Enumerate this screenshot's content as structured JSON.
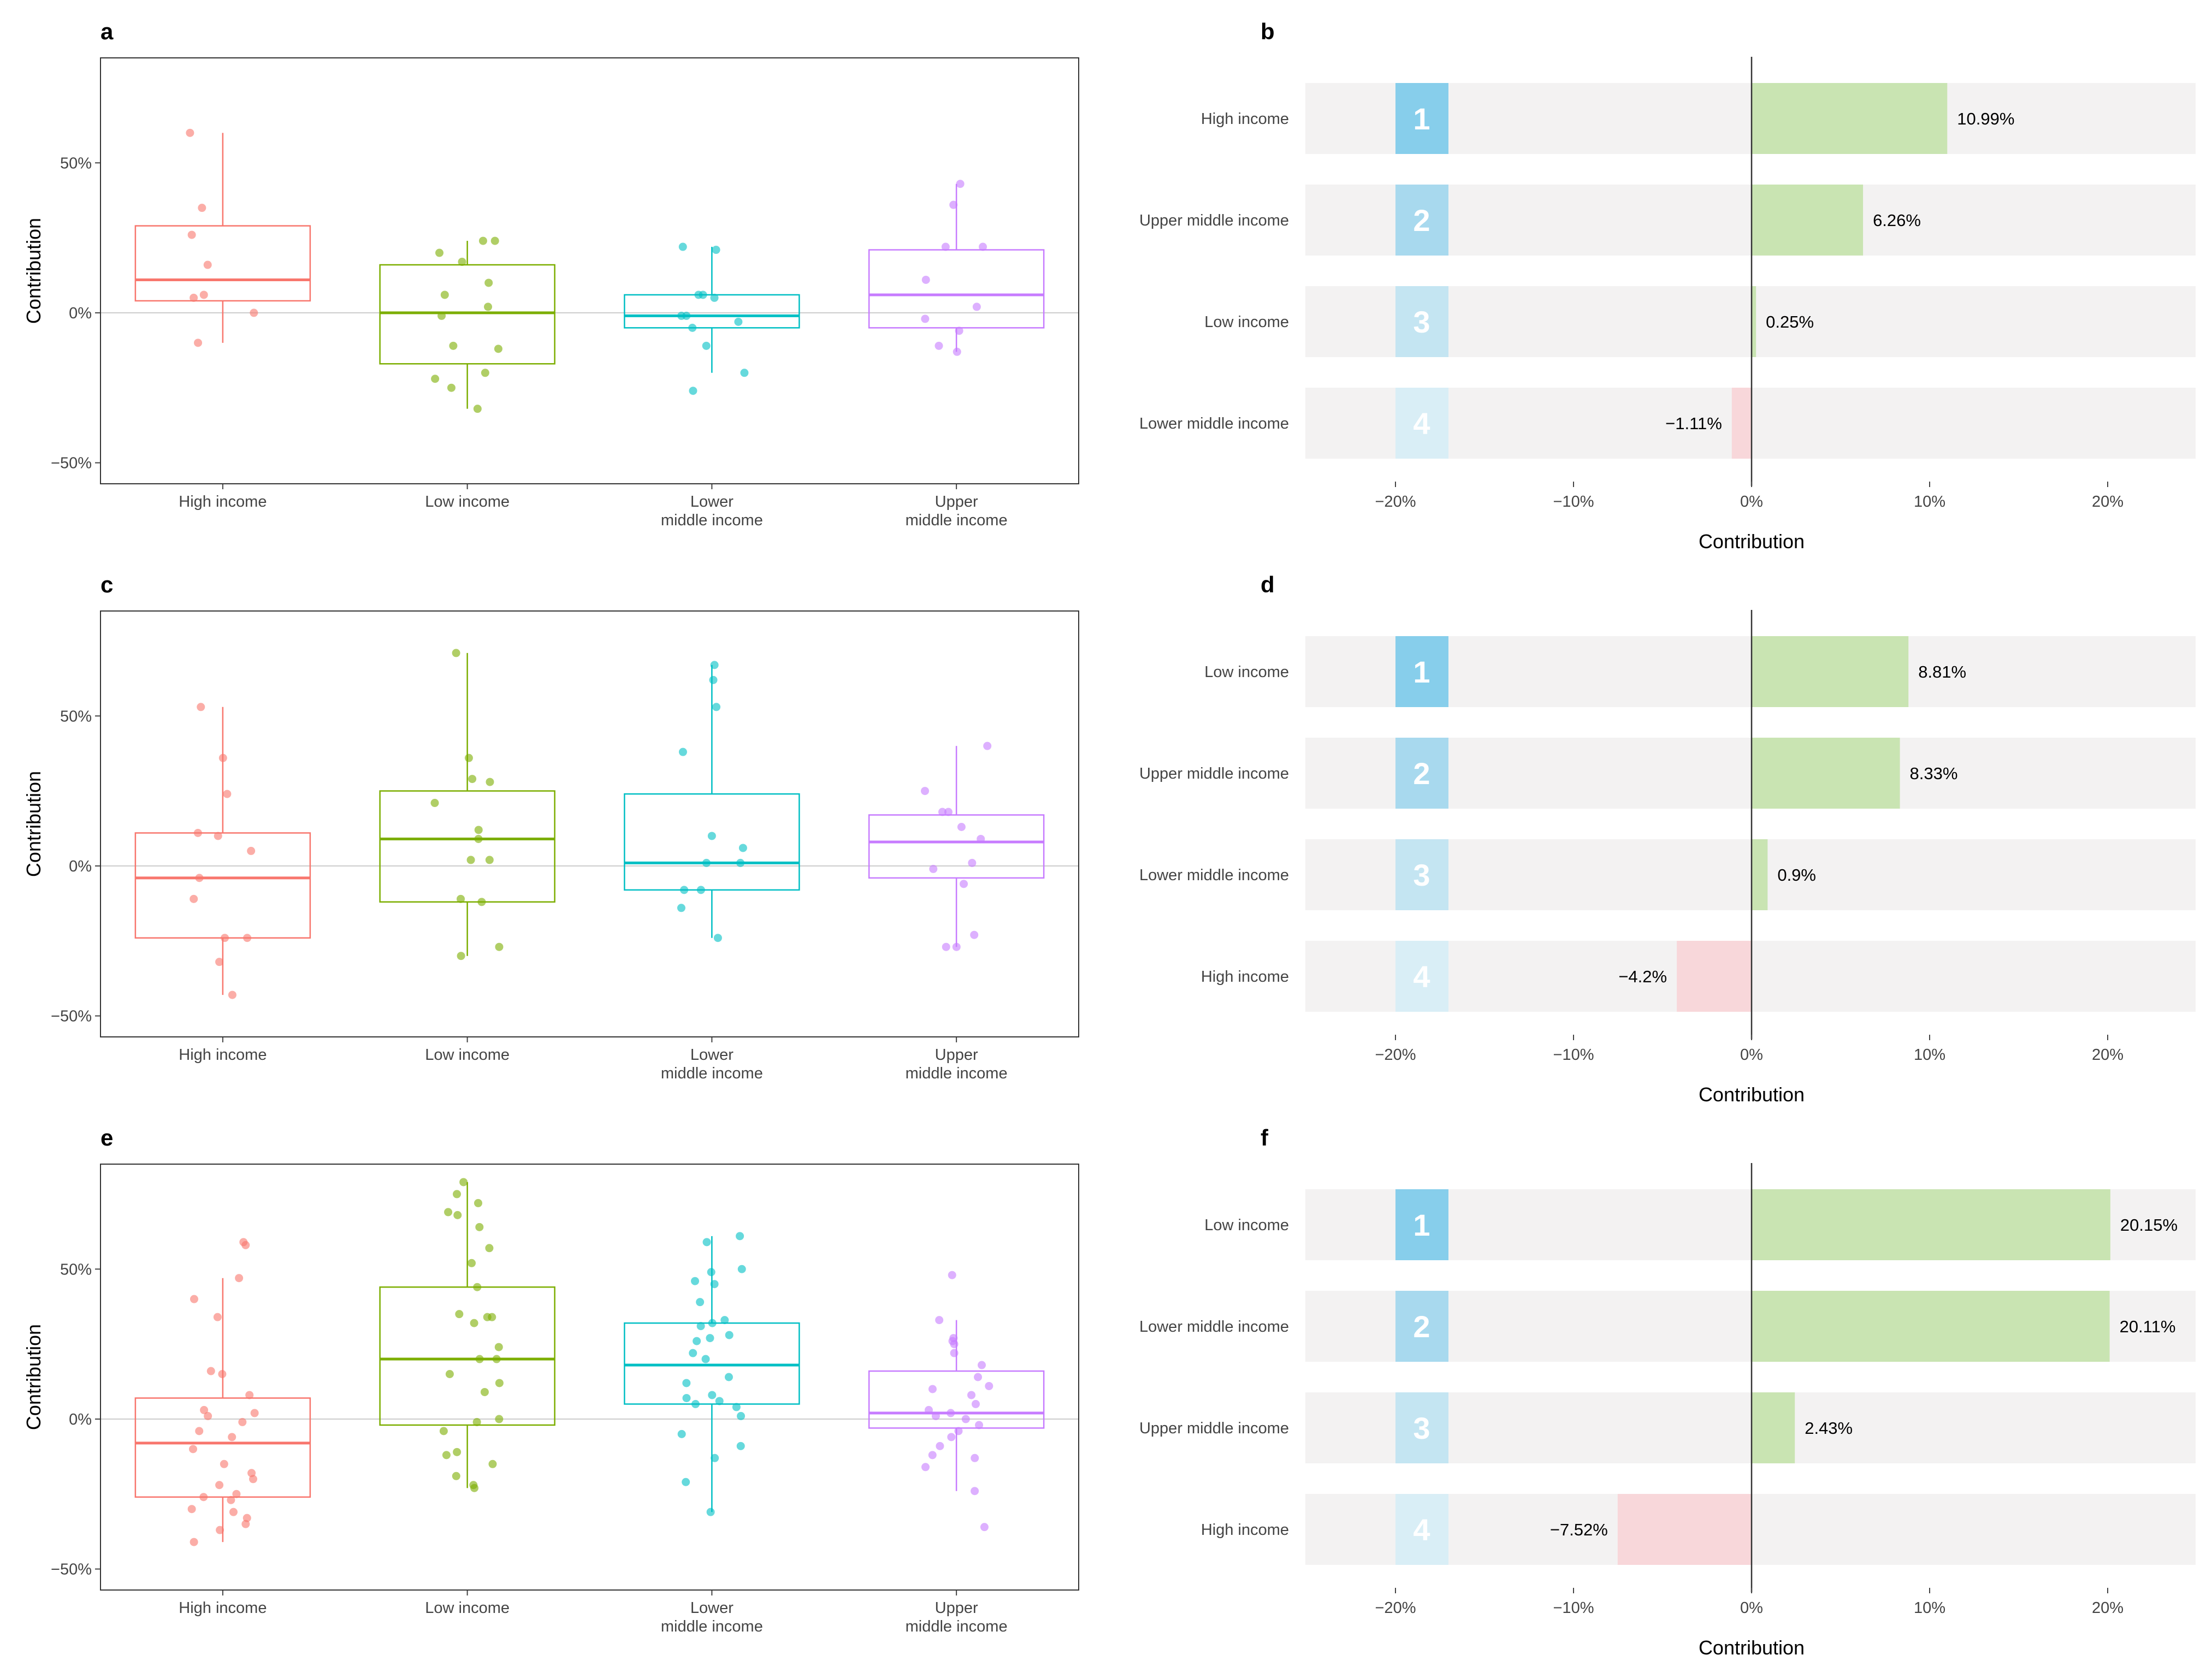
{
  "chart_data": [
    {
      "panel": "a",
      "type": "box",
      "ylabel": "Contribution",
      "yticks": [
        "50%",
        "0%",
        "−50%"
      ],
      "ylim": [
        -57,
        85
      ],
      "categories": [
        {
          "name": "High income",
          "label_lines": [
            "High income"
          ],
          "color": "#f8766d",
          "q1": 4,
          "median": 11,
          "q3": 29,
          "whisker_low": -10,
          "whisker_high": 60,
          "points": [
            60,
            35,
            26,
            16,
            6,
            5,
            0,
            -10
          ]
        },
        {
          "name": "Low income",
          "label_lines": [
            "Low income"
          ],
          "color": "#7cae00",
          "q1": -17,
          "median": 0,
          "q3": 16,
          "whisker_low": -32,
          "whisker_high": 24,
          "points": [
            24,
            24,
            20,
            17,
            10,
            6,
            2,
            -1,
            -12,
            -11,
            -20,
            -22,
            -25,
            -32
          ]
        },
        {
          "name": "Lower middle income",
          "label_lines": [
            "Lower",
            "middle income"
          ],
          "color": "#00bfc4",
          "q1": -5,
          "median": -1,
          "q3": 6,
          "whisker_low": -20,
          "whisker_high": 22,
          "points": [
            22,
            21,
            6,
            6,
            5,
            -1,
            -1,
            -3,
            -5,
            -11,
            -20,
            -26
          ]
        },
        {
          "name": "Upper middle income",
          "label_lines": [
            "Upper",
            "middle income"
          ],
          "color": "#c77cff",
          "q1": -5,
          "median": 6,
          "q3": 21,
          "whisker_low": -13,
          "whisker_high": 43,
          "points": [
            43,
            36,
            22,
            22,
            11,
            2,
            -2,
            -6,
            -11,
            -13
          ]
        }
      ]
    },
    {
      "panel": "b",
      "type": "bar",
      "xlabel": "Contribution",
      "xticks": [
        "−20%",
        "−10%",
        "0%",
        "10%",
        "20%"
      ],
      "xlim": [
        -25,
        25
      ],
      "ranks": [
        "1",
        "2",
        "3",
        "4"
      ],
      "categories": [
        "High income",
        "Upper middle income",
        "Low income",
        "Lower middle income"
      ],
      "values": [
        10.99,
        6.26,
        0.25,
        -1.11
      ],
      "value_labels": [
        "10.99%",
        "6.26%",
        "0.25%",
        "−1.11%"
      ]
    },
    {
      "panel": "c",
      "type": "box",
      "ylabel": "Contribution",
      "yticks": [
        "50%",
        "0%",
        "−50%"
      ],
      "ylim": [
        -57,
        85
      ],
      "categories": [
        {
          "name": "High income",
          "label_lines": [
            "High income"
          ],
          "color": "#f8766d",
          "q1": -24,
          "median": -4,
          "q3": 11,
          "whisker_low": -43,
          "whisker_high": 53,
          "points": [
            53,
            36,
            24,
            11,
            10,
            5,
            -4,
            -11,
            -24,
            -24,
            -32,
            -43
          ]
        },
        {
          "name": "Low income",
          "label_lines": [
            "Low income"
          ],
          "color": "#7cae00",
          "q1": -12,
          "median": 9,
          "q3": 25,
          "whisker_low": -30,
          "whisker_high": 71,
          "points": [
            71,
            36,
            29,
            28,
            21,
            12,
            9,
            2,
            2,
            -11,
            -12,
            -27,
            -30
          ]
        },
        {
          "name": "Lower middle income",
          "label_lines": [
            "Lower",
            "middle income"
          ],
          "color": "#00bfc4",
          "q1": -8,
          "median": 1,
          "q3": 24,
          "whisker_low": -24,
          "whisker_high": 67,
          "points": [
            67,
            62,
            53,
            38,
            10,
            6,
            1,
            1,
            -8,
            -8,
            -14,
            -24
          ]
        },
        {
          "name": "Upper middle income",
          "label_lines": [
            "Upper",
            "middle income"
          ],
          "color": "#c77cff",
          "q1": -4,
          "median": 8,
          "q3": 17,
          "whisker_low": -27,
          "whisker_high": 40,
          "points": [
            40,
            25,
            18,
            18,
            13,
            9,
            1,
            -1,
            -6,
            -23,
            -27,
            -27
          ]
        }
      ]
    },
    {
      "panel": "d",
      "type": "bar",
      "xlabel": "Contribution",
      "xticks": [
        "−20%",
        "−10%",
        "0%",
        "10%",
        "20%"
      ],
      "xlim": [
        -25,
        25
      ],
      "ranks": [
        "1",
        "2",
        "3",
        "4"
      ],
      "categories": [
        "Low income",
        "Upper middle income",
        "Lower middle income",
        "High income"
      ],
      "values": [
        8.81,
        8.33,
        0.9,
        -4.2
      ],
      "value_labels": [
        "8.81%",
        "8.33%",
        "0.9%",
        "−4.2%"
      ]
    },
    {
      "panel": "e",
      "type": "box",
      "ylabel": "Contribution",
      "yticks": [
        "50%",
        "0%",
        "−50%"
      ],
      "ylim": [
        -57,
        85
      ],
      "categories": [
        {
          "name": "High income",
          "label_lines": [
            "High income"
          ],
          "color": "#f8766d",
          "q1": -26,
          "median": -8,
          "q3": 7,
          "whisker_low": -41,
          "whisker_high": 47,
          "points": [
            59,
            58,
            47,
            40,
            34,
            16,
            15,
            8,
            3,
            2,
            1,
            -1,
            -4,
            -6,
            -10,
            -15,
            -18,
            -20,
            -22,
            -25,
            -26,
            -27,
            -30,
            -31,
            -33,
            -35,
            -37,
            -41
          ]
        },
        {
          "name": "Low income",
          "label_lines": [
            "Low income"
          ],
          "color": "#7cae00",
          "q1": -2,
          "median": 20,
          "q3": 44,
          "whisker_low": -23,
          "whisker_high": 79,
          "points": [
            79,
            75,
            72,
            69,
            68,
            64,
            57,
            52,
            44,
            35,
            34,
            34,
            32,
            24,
            20,
            20,
            15,
            12,
            9,
            0,
            -1,
            -4,
            -11,
            -12,
            -15,
            -19,
            -22,
            -23
          ]
        },
        {
          "name": "Lower middle income",
          "label_lines": [
            "Lower",
            "middle income"
          ],
          "color": "#00bfc4",
          "q1": 5,
          "median": 18,
          "q3": 32,
          "whisker_low": -31,
          "whisker_high": 61,
          "points": [
            61,
            59,
            50,
            49,
            46,
            45,
            39,
            33,
            32,
            31,
            28,
            27,
            26,
            22,
            20,
            14,
            12,
            8,
            7,
            6,
            5,
            4,
            1,
            -5,
            -9,
            -13,
            -21,
            -31
          ]
        },
        {
          "name": "Upper middle income",
          "label_lines": [
            "Upper",
            "middle income"
          ],
          "color": "#c77cff",
          "q1": -3,
          "median": 2,
          "q3": 16,
          "whisker_low": -24,
          "whisker_high": 33,
          "points": [
            48,
            33,
            27,
            26,
            25,
            22,
            18,
            14,
            11,
            10,
            8,
            5,
            3,
            2,
            1,
            0,
            -2,
            -4,
            -6,
            -9,
            -12,
            -13,
            -16,
            -24,
            -36
          ]
        }
      ]
    },
    {
      "panel": "f",
      "type": "bar",
      "xlabel": "Contribution",
      "xticks": [
        "−20%",
        "−10%",
        "0%",
        "10%",
        "20%"
      ],
      "xlim": [
        -25,
        25
      ],
      "ranks": [
        "1",
        "2",
        "3",
        "4"
      ],
      "categories": [
        "Low income",
        "Lower middle income",
        "Upper middle income",
        "High income"
      ],
      "values": [
        20.15,
        20.11,
        2.43,
        -7.52
      ],
      "value_labels": [
        "20.15%",
        "20.11%",
        "2.43%",
        "−7.52%"
      ]
    }
  ]
}
